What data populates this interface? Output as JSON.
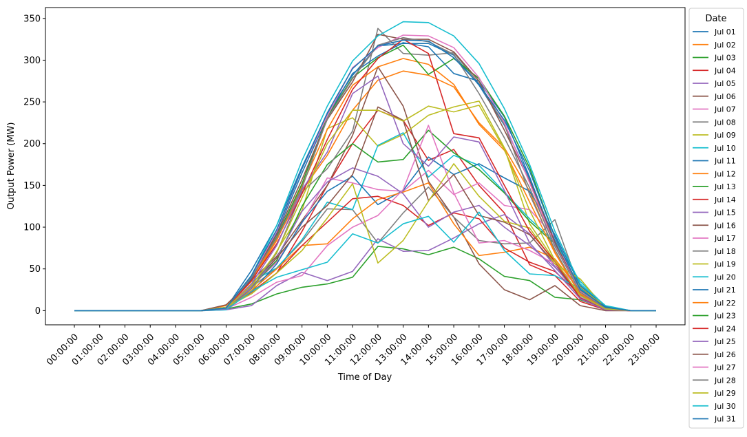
{
  "chart_data": {
    "type": "line",
    "title": "",
    "xlabel": "Time of Day",
    "ylabel": "Output Power (MW)",
    "ylim": [
      -17,
      363
    ],
    "yticks": [
      0,
      50,
      100,
      150,
      200,
      250,
      300,
      350
    ],
    "grid": false,
    "legend": {
      "title": "Date",
      "placement": "outside-right"
    },
    "x": [
      "00:00:00",
      "01:00:00",
      "02:00:00",
      "03:00:00",
      "04:00:00",
      "05:00:00",
      "06:00:00",
      "07:00:00",
      "08:00:00",
      "09:00:00",
      "10:00:00",
      "11:00:00",
      "12:00:00",
      "13:00:00",
      "14:00:00",
      "15:00:00",
      "16:00:00",
      "17:00:00",
      "18:00:00",
      "19:00:00",
      "20:00:00",
      "21:00:00",
      "22:00:00",
      "23:00:00"
    ],
    "series": [
      {
        "name": "Jul 01",
        "color": "#1f77b4",
        "values": [
          0,
          0,
          0,
          0,
          0,
          0,
          3,
          48,
          102,
          172,
          236,
          282,
          317,
          320,
          320,
          306,
          270,
          222,
          158,
          84,
          27,
          4,
          0,
          0
        ]
      },
      {
        "name": "Jul 02",
        "color": "#ff7f0e",
        "values": [
          0,
          0,
          0,
          0,
          0,
          0,
          6,
          38,
          85,
          144,
          186,
          240,
          276,
          287,
          282,
          268,
          225,
          195,
          143,
          70,
          19,
          3,
          0,
          0
        ]
      },
      {
        "name": "Jul 03",
        "color": "#2ca02c",
        "values": [
          0,
          0,
          0,
          0,
          0,
          0,
          2,
          8,
          20,
          28,
          32,
          40,
          77,
          74,
          67,
          76,
          62,
          41,
          36,
          16,
          13,
          2,
          0,
          0
        ]
      },
      {
        "name": "Jul 04",
        "color": "#d62728",
        "values": [
          0,
          0,
          0,
          0,
          0,
          0,
          3,
          22,
          45,
          95,
          150,
          200,
          240,
          228,
          180,
          193,
          150,
          117,
          55,
          42,
          11,
          1,
          0,
          0
        ]
      },
      {
        "name": "Jul 05",
        "color": "#9467bd",
        "values": [
          0,
          0,
          0,
          0,
          0,
          0,
          1,
          6,
          30,
          46,
          36,
          47,
          86,
          71,
          72,
          87,
          104,
          115,
          92,
          53,
          16,
          2,
          0,
          0
        ]
      },
      {
        "name": "Jul 06",
        "color": "#8c564b",
        "values": [
          0,
          0,
          0,
          0,
          0,
          0,
          7,
          36,
          65,
          108,
          150,
          210,
          292,
          245,
          155,
          112,
          56,
          25,
          13,
          30,
          6,
          0,
          0,
          0
        ]
      },
      {
        "name": "Jul 07",
        "color": "#e377c2",
        "values": [
          0,
          0,
          0,
          0,
          0,
          0,
          3,
          29,
          58,
          105,
          159,
          153,
          145,
          143,
          168,
          139,
          153,
          126,
          121,
          88,
          20,
          1,
          0,
          0
        ]
      },
      {
        "name": "Jul 08",
        "color": "#7f7f7f",
        "values": [
          0,
          0,
          0,
          0,
          0,
          0,
          3,
          28,
          51,
          83,
          122,
          121,
          81,
          117,
          148,
          112,
          84,
          80,
          81,
          109,
          24,
          2,
          0,
          0
        ]
      },
      {
        "name": "Jul 09",
        "color": "#bcbd22",
        "values": [
          0,
          0,
          0,
          0,
          0,
          0,
          2,
          23,
          71,
          120,
          218,
          231,
          197,
          211,
          234,
          244,
          251,
          195,
          104,
          59,
          29,
          3,
          0,
          0
        ]
      },
      {
        "name": "Jul 10",
        "color": "#17becf",
        "values": [
          0,
          0,
          0,
          0,
          0,
          0,
          4,
          35,
          51,
          85,
          130,
          121,
          198,
          213,
          160,
          186,
          174,
          142,
          110,
          82,
          35,
          5,
          0,
          0
        ]
      },
      {
        "name": "Jul 11",
        "color": "#1f77b4",
        "values": [
          0,
          0,
          0,
          0,
          0,
          0,
          4,
          22,
          56,
          106,
          143,
          161,
          127,
          144,
          184,
          163,
          176,
          159,
          143,
          91,
          30,
          5,
          0,
          0
        ]
      },
      {
        "name": "Jul 12",
        "color": "#ff7f0e",
        "values": [
          0,
          0,
          0,
          0,
          0,
          0,
          3,
          24,
          50,
          78,
          80,
          110,
          133,
          142,
          153,
          104,
          66,
          70,
          76,
          62,
          24,
          2,
          0,
          0
        ]
      },
      {
        "name": "Jul 13",
        "color": "#2ca02c",
        "values": [
          0,
          0,
          0,
          0,
          0,
          0,
          3,
          29,
          60,
          125,
          175,
          200,
          178,
          181,
          216,
          189,
          169,
          141,
          107,
          80,
          22,
          3,
          0,
          0
        ]
      },
      {
        "name": "Jul 14",
        "color": "#d62728",
        "values": [
          0,
          0,
          0,
          0,
          0,
          0,
          2,
          22,
          45,
          78,
          106,
          134,
          137,
          126,
          102,
          117,
          110,
          75,
          58,
          47,
          19,
          3,
          0,
          0
        ]
      },
      {
        "name": "Jul 15",
        "color": "#9467bd",
        "values": [
          0,
          0,
          0,
          0,
          0,
          0,
          3,
          28,
          63,
          119,
          154,
          171,
          161,
          140,
          100,
          118,
          126,
          100,
          78,
          52,
          20,
          2,
          0,
          0
        ]
      },
      {
        "name": "Jul 16",
        "color": "#8c564b",
        "values": [
          0,
          0,
          0,
          0,
          0,
          0,
          2,
          32,
          63,
          100,
          126,
          163,
          244,
          228,
          132,
          163,
          114,
          106,
          91,
          56,
          15,
          1,
          0,
          0
        ]
      },
      {
        "name": "Jul 17",
        "color": "#e377c2",
        "values": [
          0,
          0,
          0,
          0,
          0,
          0,
          2,
          16,
          34,
          42,
          78,
          100,
          114,
          145,
          222,
          141,
          81,
          84,
          72,
          56,
          26,
          2,
          0,
          0
        ]
      },
      {
        "name": "Jul 18",
        "color": "#7f7f7f",
        "values": [
          0,
          0,
          0,
          0,
          0,
          0,
          2,
          26,
          69,
          142,
          170,
          215,
          338,
          308,
          306,
          309,
          272,
          223,
          139,
          73,
          18,
          2,
          0,
          0
        ]
      },
      {
        "name": "Jul 19",
        "color": "#bcbd22",
        "values": [
          0,
          0,
          0,
          0,
          0,
          0,
          4,
          20,
          45,
          72,
          111,
          152,
          57,
          84,
          131,
          176,
          137,
          107,
          99,
          56,
          38,
          2,
          0,
          0
        ]
      },
      {
        "name": "Jul 20",
        "color": "#17becf",
        "values": [
          0,
          0,
          0,
          0,
          0,
          0,
          1,
          23,
          40,
          49,
          58,
          92,
          81,
          104,
          113,
          82,
          118,
          72,
          44,
          42,
          26,
          2,
          0,
          0
        ]
      },
      {
        "name": "Jul 21",
        "color": "#1f77b4",
        "values": [
          0,
          0,
          0,
          0,
          0,
          0,
          3,
          38,
          93,
          165,
          232,
          284,
          305,
          321,
          316,
          284,
          275,
          232,
          160,
          81,
          23,
          3,
          0,
          0
        ]
      },
      {
        "name": "Jul 22",
        "color": "#ff7f0e",
        "values": [
          0,
          0,
          0,
          0,
          0,
          0,
          3,
          35,
          84,
          150,
          217,
          270,
          292,
          302,
          295,
          271,
          223,
          192,
          130,
          69,
          20,
          3,
          0,
          0
        ]
      },
      {
        "name": "Jul 23",
        "color": "#2ca02c",
        "values": [
          0,
          0,
          0,
          0,
          0,
          0,
          3,
          40,
          88,
          152,
          232,
          279,
          303,
          318,
          283,
          302,
          278,
          233,
          171,
          88,
          25,
          4,
          0,
          0
        ]
      },
      {
        "name": "Jul 24",
        "color": "#d62728",
        "values": [
          0,
          0,
          0,
          0,
          0,
          0,
          3,
          36,
          80,
          140,
          205,
          265,
          302,
          325,
          308,
          212,
          207,
          150,
          95,
          59,
          15,
          1,
          0,
          0
        ]
      },
      {
        "name": "Jul 25",
        "color": "#9467bd",
        "values": [
          0,
          0,
          0,
          0,
          0,
          0,
          2,
          32,
          78,
          145,
          190,
          260,
          281,
          200,
          173,
          208,
          202,
          144,
          81,
          48,
          14,
          1,
          0,
          0
        ]
      },
      {
        "name": "Jul 26",
        "color": "#8c564b",
        "values": [
          0,
          0,
          0,
          0,
          0,
          0,
          3,
          40,
          91,
          157,
          229,
          274,
          331,
          325,
          325,
          310,
          275,
          216,
          155,
          82,
          22,
          3,
          0,
          0
        ]
      },
      {
        "name": "Jul 27",
        "color": "#e377c2",
        "values": [
          0,
          0,
          0,
          0,
          0,
          0,
          3,
          40,
          95,
          170,
          233,
          291,
          315,
          330,
          329,
          315,
          279,
          225,
          153,
          78,
          23,
          3,
          0,
          0
        ]
      },
      {
        "name": "Jul 28",
        "color": "#7f7f7f",
        "values": [
          0,
          0,
          0,
          0,
          0,
          0,
          3,
          40,
          87,
          147,
          230,
          278,
          318,
          327,
          322,
          307,
          260,
          207,
          147,
          77,
          22,
          3,
          0,
          0
        ]
      },
      {
        "name": "Jul 29",
        "color": "#bcbd22",
        "values": [
          0,
          0,
          0,
          0,
          0,
          0,
          3,
          30,
          70,
          135,
          200,
          240,
          240,
          227,
          245,
          238,
          246,
          193,
          120,
          60,
          18,
          2,
          0,
          0
        ]
      },
      {
        "name": "Jul 30",
        "color": "#17becf",
        "values": [
          0,
          0,
          0,
          0,
          0,
          0,
          3,
          42,
          102,
          180,
          245,
          299,
          329,
          346,
          345,
          329,
          296,
          242,
          175,
          95,
          32,
          6,
          0,
          0
        ]
      },
      {
        "name": "Jul 31",
        "color": "#1f77b4",
        "values": [
          0,
          0,
          0,
          0,
          0,
          0,
          3,
          42,
          97,
          170,
          237,
          290,
          317,
          324,
          323,
          303,
          271,
          228,
          167,
          88,
          25,
          4,
          0,
          0
        ]
      }
    ]
  }
}
